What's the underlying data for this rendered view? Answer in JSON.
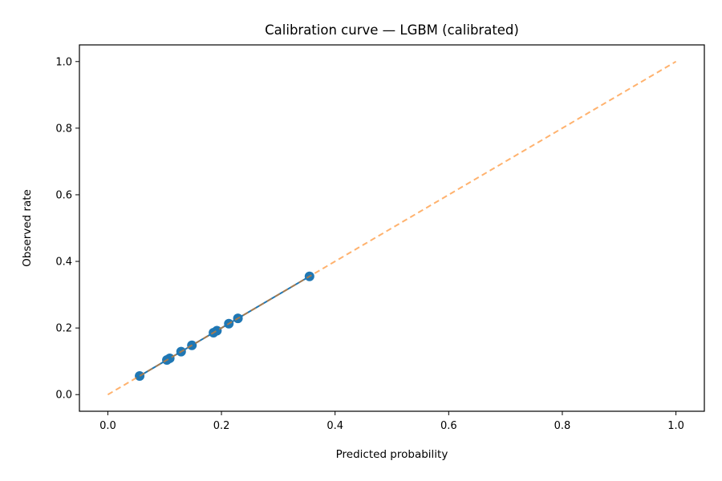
{
  "chart_data": {
    "type": "line",
    "title": "Calibration curve — LGBM (calibrated)",
    "xlabel": "Predicted probability",
    "ylabel": "Observed rate",
    "xlim": [
      -0.05,
      1.05
    ],
    "ylim": [
      -0.05,
      1.05
    ],
    "xticks": [
      "0.0",
      "0.2",
      "0.4",
      "0.6",
      "0.8",
      "1.0"
    ],
    "yticks": [
      "0.0",
      "0.2",
      "0.4",
      "0.6",
      "0.8",
      "1.0"
    ],
    "grid": false,
    "series": [
      {
        "style": "line-with-markers",
        "color": "#1f77b4",
        "x": [
          0.056,
          0.104,
          0.109,
          0.129,
          0.148,
          0.186,
          0.192,
          0.213,
          0.229,
          0.355
        ],
        "y": [
          0.056,
          0.104,
          0.109,
          0.129,
          0.148,
          0.186,
          0.192,
          0.213,
          0.229,
          0.355
        ]
      },
      {
        "style": "dashed",
        "color": "#ff7f0e",
        "x": [
          0.0,
          1.0
        ],
        "y": [
          0.0,
          1.0
        ]
      }
    ]
  }
}
